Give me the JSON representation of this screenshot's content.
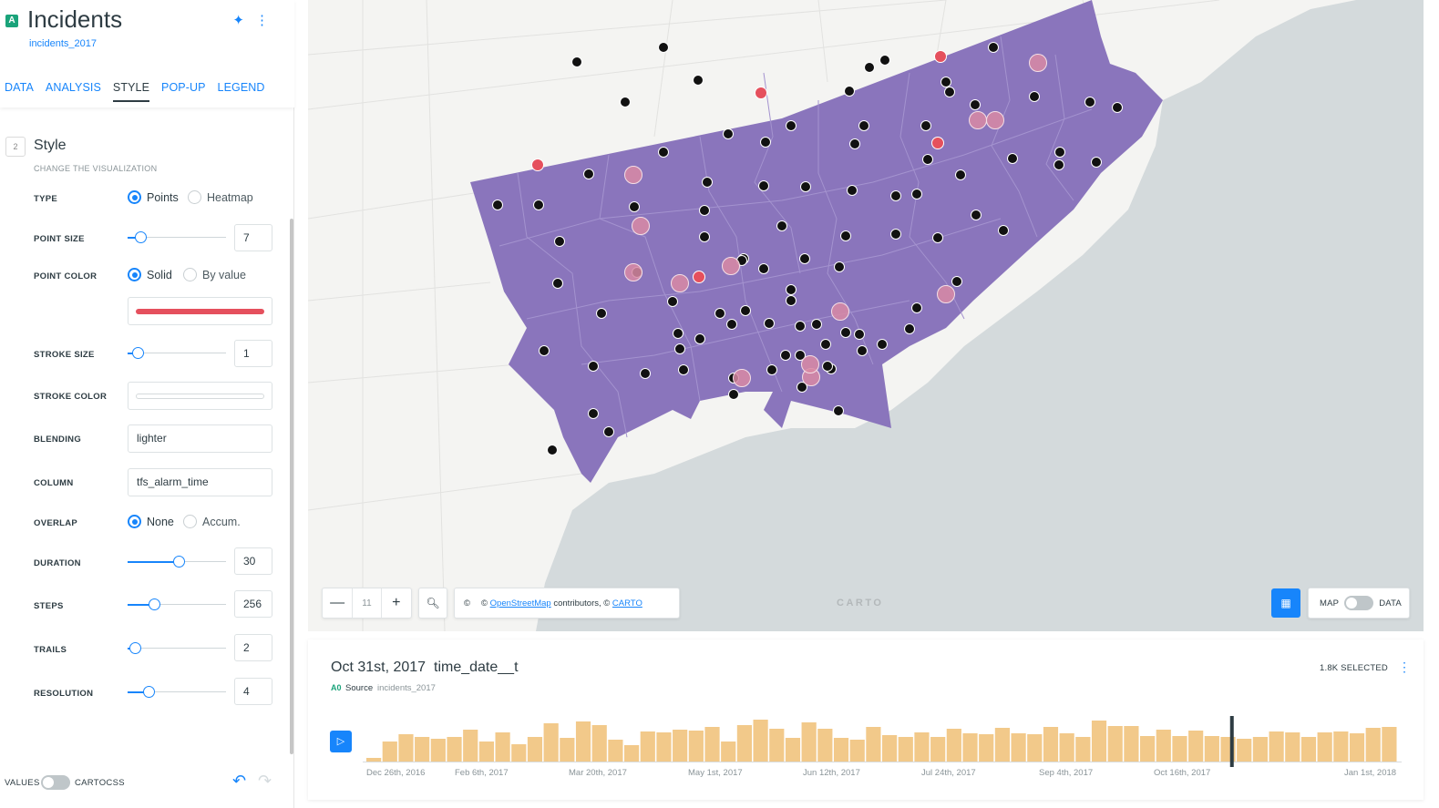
{
  "layer": {
    "badge": "A",
    "title": "Incidents",
    "source": "incidents_2017"
  },
  "header_icons": [
    "magic-wand-icon",
    "more-vertical-icon"
  ],
  "tabs": [
    {
      "label": "DATA",
      "active": false
    },
    {
      "label": "ANALYSIS",
      "active": false
    },
    {
      "label": "STYLE",
      "active": true
    },
    {
      "label": "POP-UP",
      "active": false
    },
    {
      "label": "LEGEND",
      "active": false
    }
  ],
  "section": {
    "number": "2",
    "title": "Style",
    "subtitle": "CHANGE THE VISUALIZATION"
  },
  "style": {
    "type_label": "TYPE",
    "type_options": [
      "Points",
      "Heatmap"
    ],
    "type_selected": "Points",
    "point_size_label": "POINT SIZE",
    "point_size": "7",
    "point_size_level": 0.13,
    "point_color_label": "POINT COLOR",
    "point_color_options": [
      "Solid",
      "By value"
    ],
    "point_color_selected": "Solid",
    "point_color": "#e5505d",
    "stroke_size_label": "STROKE SIZE",
    "stroke_size": "1",
    "stroke_size_level": 0.1,
    "stroke_color_label": "STROKE COLOR",
    "stroke_color": "#ffffff",
    "blending_label": "BLENDING",
    "blending": "lighter",
    "column_label": "COLUMN",
    "column": "tfs_alarm_time",
    "overlap_label": "OVERLAP",
    "overlap_options": [
      "None",
      "Accum."
    ],
    "overlap_selected": "None",
    "duration_label": "DURATION",
    "duration": "30",
    "duration_level": 0.52,
    "steps_label": "STEPS",
    "steps": "256",
    "steps_level": 0.27,
    "trails_label": "TRAILS",
    "trails": "2",
    "trails_level": 0.07,
    "resolution_label": "RESOLUTION",
    "resolution": "4",
    "resolution_level": 0.21
  },
  "footer": {
    "values_label": "VALUES",
    "cartocss_label": "CARTOCSS"
  },
  "map": {
    "zoom": "11",
    "zoom_in": "+",
    "zoom_out": "—",
    "copyright_symbol": "©",
    "attribution_prefix": "©",
    "attribution_link1": "OpenStreetMap",
    "attribution_mid": "contributors, ©",
    "attribution_link2": "CARTO",
    "logo": "CARTO",
    "toggle_left": "MAP",
    "toggle_right": "DATA",
    "polygon_color": "#8a75bc",
    "water_color": "#d4dadc",
    "land_color": "#f4f4f2"
  },
  "timeline": {
    "date": "Oct 31st, 2017",
    "column": "time_date__t",
    "layer_badge": "A0",
    "source_label": "Source",
    "source": "incidents_2017",
    "selected": "1.8K SELECTED",
    "ticks": [
      "Dec 26th, 2016",
      "Feb 6th, 2017",
      "Mar 20th, 2017",
      "May 1st, 2017",
      "Jun 12th, 2017",
      "Jul 24th, 2017",
      "Sep 4th, 2017",
      "Oct 16th, 2017",
      "Jan 1st, 2018"
    ],
    "bar_color": "#f2c98a",
    "values": [
      4,
      22,
      30,
      27,
      25,
      27,
      35,
      22,
      32,
      19,
      27,
      42,
      26,
      44,
      40,
      24,
      18,
      33,
      32,
      35,
      34,
      38,
      22,
      40,
      46,
      36,
      26,
      43,
      36,
      26,
      24,
      38,
      29,
      27,
      32,
      27,
      36,
      31,
      30,
      37,
      31,
      30,
      38,
      31,
      27,
      45,
      39,
      39,
      28,
      35,
      28,
      34,
      28,
      27,
      25,
      27,
      33,
      32,
      27,
      32,
      33,
      31,
      37,
      38
    ],
    "cursor_fraction": 0.839
  }
}
